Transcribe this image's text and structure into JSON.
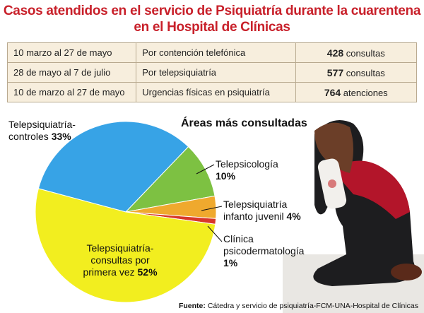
{
  "header": {
    "title": "Casos atendidos en el servicio de Psiquiatría durante la cuarentena en el Hospital de Clínicas"
  },
  "table": {
    "rows": [
      [
        "10 marzo al 27 de mayo",
        "Por contención telefónica",
        {
          "value": 428,
          "unit": "consultas"
        }
      ],
      [
        "28 de mayo al 7 de julio",
        "Por telepsiquiatría",
        {
          "value": 577,
          "unit": "consultas"
        }
      ],
      [
        "10 de marzo al 27 de mayo",
        "Urgencias físicas en psiquiatría",
        {
          "value": 764,
          "unit": "atenciones"
        }
      ]
    ]
  },
  "chart_data": {
    "type": "pie",
    "title": "Áreas más consultadas",
    "categories": [
      "Telepsiquiatría-controles",
      "Telepsicología",
      "Telepsiquiatría infanto juvenil",
      "Clínica psicodermatología",
      "Telepsiquiatría-consultas por primera vez"
    ],
    "values": [
      33,
      10,
      4,
      1,
      52
    ],
    "value_labels": [
      "33%",
      "10%",
      "4%",
      "1%",
      "52%"
    ],
    "colors": [
      "#37a3e6",
      "#7dc142",
      "#efa92e",
      "#d8382a",
      "#f2ee1f"
    ]
  },
  "source": {
    "label": "Fuente:",
    "text": "Cátedra y servicio de psiquiatría-FCM-UNA-Hospital de Clínicas"
  }
}
